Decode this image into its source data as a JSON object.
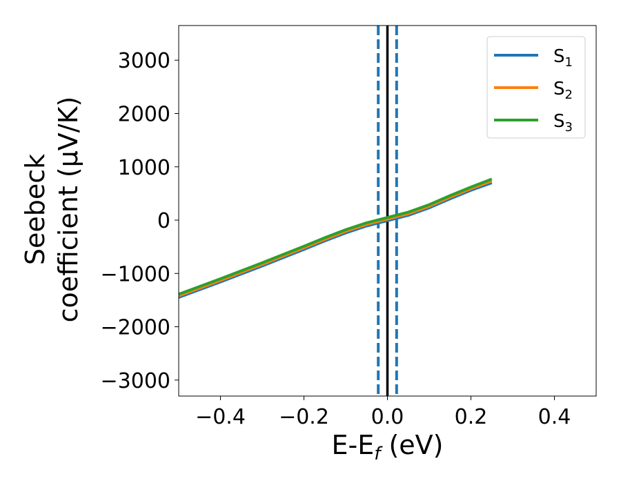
{
  "chart_data": {
    "type": "line",
    "xlabel": "E-E",
    "xlabel_sub": "f",
    "xlabel_unit": " (eV)",
    "ylabel_line1": "Seebeck",
    "ylabel_line2": "coefficient  (μV/K)",
    "xlim": [
      -0.5,
      0.5
    ],
    "ylim": [
      -3300,
      3650
    ],
    "xticks": [
      -0.4,
      -0.2,
      0.0,
      0.2,
      0.4
    ],
    "xtick_labels": [
      "−0.4",
      "−0.2",
      "0.0",
      "0.2",
      "0.4"
    ],
    "yticks": [
      -3000,
      -2000,
      -1000,
      0,
      1000,
      2000,
      3000
    ],
    "ytick_labels": [
      "−3000",
      "−2000",
      "−1000",
      "0",
      "1000",
      "2000",
      "3000"
    ],
    "grid": false,
    "legend_position": "top-right",
    "vertical_lines": [
      {
        "x": 0.0,
        "color": "#000000",
        "style": "solid"
      },
      {
        "x": -0.022,
        "color": "#1f77b4",
        "style": "dashed"
      },
      {
        "x": 0.022,
        "color": "#1f77b4",
        "style": "dashed"
      }
    ],
    "series": [
      {
        "name": "S1",
        "legend_base": "S",
        "legend_sub": "1",
        "color": "#1f77b4",
        "x": [
          -0.5,
          -0.4,
          -0.3,
          -0.2,
          -0.15,
          -0.1,
          -0.05,
          0.0,
          0.05,
          0.1,
          0.15,
          0.2,
          0.25
        ],
        "y": [
          -1450,
          -1160,
          -860,
          -550,
          -390,
          -240,
          -110,
          -10,
          90,
          230,
          400,
          560,
          700
        ]
      },
      {
        "name": "S2",
        "legend_base": "S",
        "legend_sub": "2",
        "color": "#ff7f0e",
        "x": [
          -0.5,
          -0.4,
          -0.3,
          -0.2,
          -0.15,
          -0.1,
          -0.05,
          0.0,
          0.05,
          0.1,
          0.15,
          0.2,
          0.25
        ],
        "y": [
          -1420,
          -1130,
          -830,
          -520,
          -360,
          -210,
          -80,
          20,
          120,
          260,
          430,
          590,
          735
        ]
      },
      {
        "name": "S3",
        "legend_base": "S",
        "legend_sub": "3",
        "color": "#2ca02c",
        "x": [
          -0.5,
          -0.4,
          -0.3,
          -0.2,
          -0.15,
          -0.1,
          -0.05,
          0.0,
          0.05,
          0.1,
          0.15,
          0.2,
          0.25
        ],
        "y": [
          -1390,
          -1100,
          -800,
          -490,
          -330,
          -180,
          -50,
          50,
          150,
          290,
          460,
          620,
          770
        ]
      }
    ]
  }
}
